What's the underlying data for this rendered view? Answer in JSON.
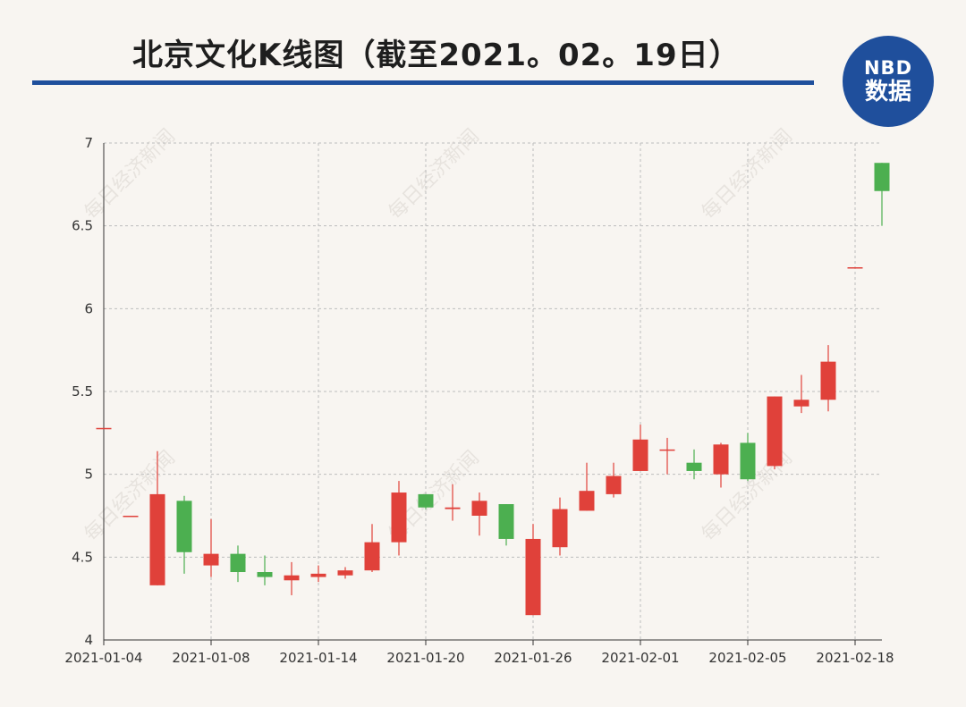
{
  "title": "北京文化K线图（截至2021。02。19日）",
  "logo": {
    "top": "NBD",
    "bottom": "数据"
  },
  "watermark": "每日经济新闻",
  "colors": {
    "up": "#e0413a",
    "down": "#4caf50",
    "accent": "#1f4f9c"
  },
  "chart_data": {
    "type": "candlestick",
    "title": "北京文化K线图（截至2021。02。19日）",
    "xlabel": "",
    "ylabel": "",
    "ylim": [
      4,
      7
    ],
    "yticks": [
      4,
      4.5,
      5,
      5.5,
      6,
      6.5,
      7
    ],
    "xtick_labels": [
      "2021-01-04",
      "2021-01-08",
      "2021-01-14",
      "2021-01-20",
      "2021-01-26",
      "2021-02-01",
      "2021-02-05",
      "2021-02-18"
    ],
    "grid": true,
    "candles": [
      {
        "date": "2021-01-04",
        "open": 5.28,
        "close": 5.28,
        "high": 5.28,
        "low": 5.28
      },
      {
        "date": "2021-01-05",
        "open": 4.75,
        "close": 4.75,
        "high": 4.75,
        "low": 4.75
      },
      {
        "date": "2021-01-06",
        "open": 4.33,
        "close": 4.88,
        "high": 5.14,
        "low": 4.33
      },
      {
        "date": "2021-01-07",
        "open": 4.84,
        "close": 4.53,
        "high": 4.87,
        "low": 4.4
      },
      {
        "date": "2021-01-08",
        "open": 4.45,
        "close": 4.52,
        "high": 4.73,
        "low": 4.38
      },
      {
        "date": "2021-01-11",
        "open": 4.52,
        "close": 4.41,
        "high": 4.57,
        "low": 4.35
      },
      {
        "date": "2021-01-12",
        "open": 4.41,
        "close": 4.38,
        "high": 4.51,
        "low": 4.33
      },
      {
        "date": "2021-01-13",
        "open": 4.36,
        "close": 4.39,
        "high": 4.47,
        "low": 4.27
      },
      {
        "date": "2021-01-14",
        "open": 4.38,
        "close": 4.4,
        "high": 4.45,
        "low": 4.35
      },
      {
        "date": "2021-01-15",
        "open": 4.39,
        "close": 4.42,
        "high": 4.44,
        "low": 4.37
      },
      {
        "date": "2021-01-18",
        "open": 4.42,
        "close": 4.59,
        "high": 4.7,
        "low": 4.41
      },
      {
        "date": "2021-01-19",
        "open": 4.59,
        "close": 4.89,
        "high": 4.96,
        "low": 4.51
      },
      {
        "date": "2021-01-20",
        "open": 4.88,
        "close": 4.8,
        "high": 4.88,
        "low": 4.79
      },
      {
        "date": "2021-01-21",
        "open": 4.79,
        "close": 4.8,
        "high": 4.94,
        "low": 4.72
      },
      {
        "date": "2021-01-22",
        "open": 4.75,
        "close": 4.84,
        "high": 4.89,
        "low": 4.63
      },
      {
        "date": "2021-01-25",
        "open": 4.82,
        "close": 4.61,
        "high": 4.82,
        "low": 4.57
      },
      {
        "date": "2021-01-26",
        "open": 4.15,
        "close": 4.61,
        "high": 4.7,
        "low": 4.15
      },
      {
        "date": "2021-01-27",
        "open": 4.56,
        "close": 4.79,
        "high": 4.86,
        "low": 4.51
      },
      {
        "date": "2021-01-28",
        "open": 4.78,
        "close": 4.9,
        "high": 5.07,
        "low": 4.78
      },
      {
        "date": "2021-01-29",
        "open": 4.88,
        "close": 4.99,
        "high": 5.07,
        "low": 4.86
      },
      {
        "date": "2021-02-01",
        "open": 5.02,
        "close": 5.21,
        "high": 5.3,
        "low": 5.02
      },
      {
        "date": "2021-02-02",
        "open": 5.15,
        "close": 5.15,
        "high": 5.22,
        "low": 5.0
      },
      {
        "date": "2021-02-03",
        "open": 5.07,
        "close": 5.02,
        "high": 5.15,
        "low": 4.97
      },
      {
        "date": "2021-02-04",
        "open": 5.0,
        "close": 5.18,
        "high": 5.19,
        "low": 4.92
      },
      {
        "date": "2021-02-05",
        "open": 5.19,
        "close": 4.97,
        "high": 5.25,
        "low": 4.96
      },
      {
        "date": "2021-02-08",
        "open": 5.05,
        "close": 5.47,
        "high": 5.47,
        "low": 5.03
      },
      {
        "date": "2021-02-09",
        "open": 5.41,
        "close": 5.45,
        "high": 5.6,
        "low": 5.37
      },
      {
        "date": "2021-02-10",
        "open": 5.45,
        "close": 5.68,
        "high": 5.78,
        "low": 5.38
      },
      {
        "date": "2021-02-18",
        "open": 6.25,
        "close": 6.25,
        "high": 6.25,
        "low": 6.25
      },
      {
        "date": "2021-02-19",
        "open": 6.88,
        "close": 6.71,
        "high": 6.88,
        "low": 6.5
      }
    ]
  }
}
